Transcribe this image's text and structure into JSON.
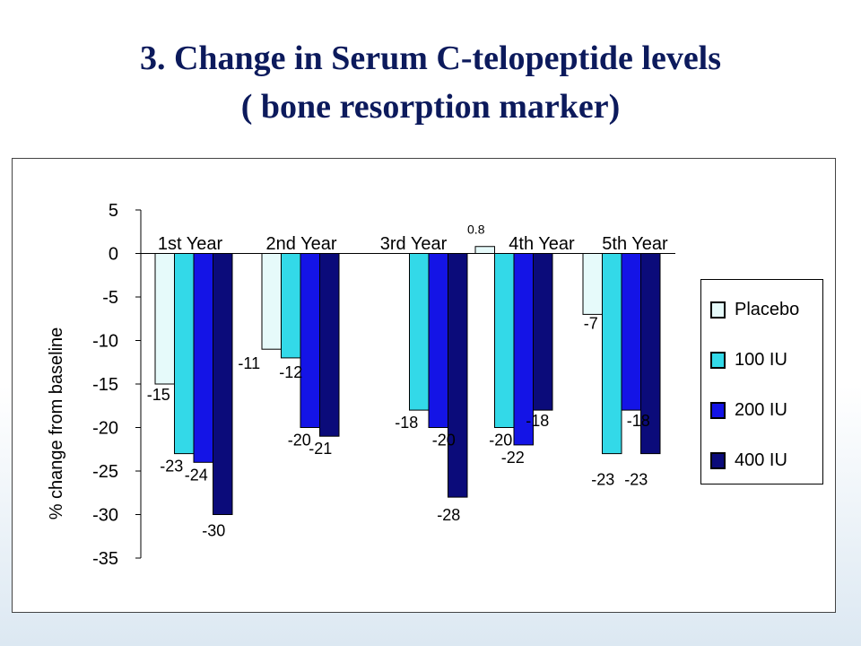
{
  "slide": {
    "title_line1": "3. Change in Serum C-telopeptide levels",
    "title_line2": "( bone resorption marker)"
  },
  "chart_data": {
    "type": "bar",
    "ylabel": "% change from baseline",
    "xlabel": "",
    "ylim": [
      -35,
      5
    ],
    "yticks": [
      5,
      0,
      -5,
      -10,
      -15,
      -20,
      -25,
      -30,
      -35
    ],
    "categories": [
      "1st Year",
      "2nd Year",
      "3rd Year",
      "4th Year",
      "5th Year"
    ],
    "series": [
      {
        "name": "Placebo",
        "color": "#e6fafa",
        "values": [
          -15,
          -11,
          null,
          0.8,
          -7
        ]
      },
      {
        "name": "100 IU",
        "color": "#33d9e8",
        "values": [
          -23,
          -12,
          -18,
          -20,
          -23
        ]
      },
      {
        "name": "200 IU",
        "color": "#1414e6",
        "values": [
          -24,
          -20,
          -20,
          -22,
          -18
        ]
      },
      {
        "name": "400 IU",
        "color": "#0b0b7a",
        "values": [
          -30,
          -21,
          -28,
          -18,
          -23
        ]
      }
    ],
    "data_labels": [
      [
        "-15",
        "-11",
        null,
        "0.8",
        "-7"
      ],
      [
        "-23",
        "-12",
        "-18",
        "-20",
        "-23"
      ],
      [
        "-24",
        "-20",
        "-20",
        "-22",
        "-18"
      ],
      [
        "-30",
        "-21",
        "-28",
        "-18",
        "-23"
      ]
    ],
    "legend_position": "right",
    "grid": false
  }
}
